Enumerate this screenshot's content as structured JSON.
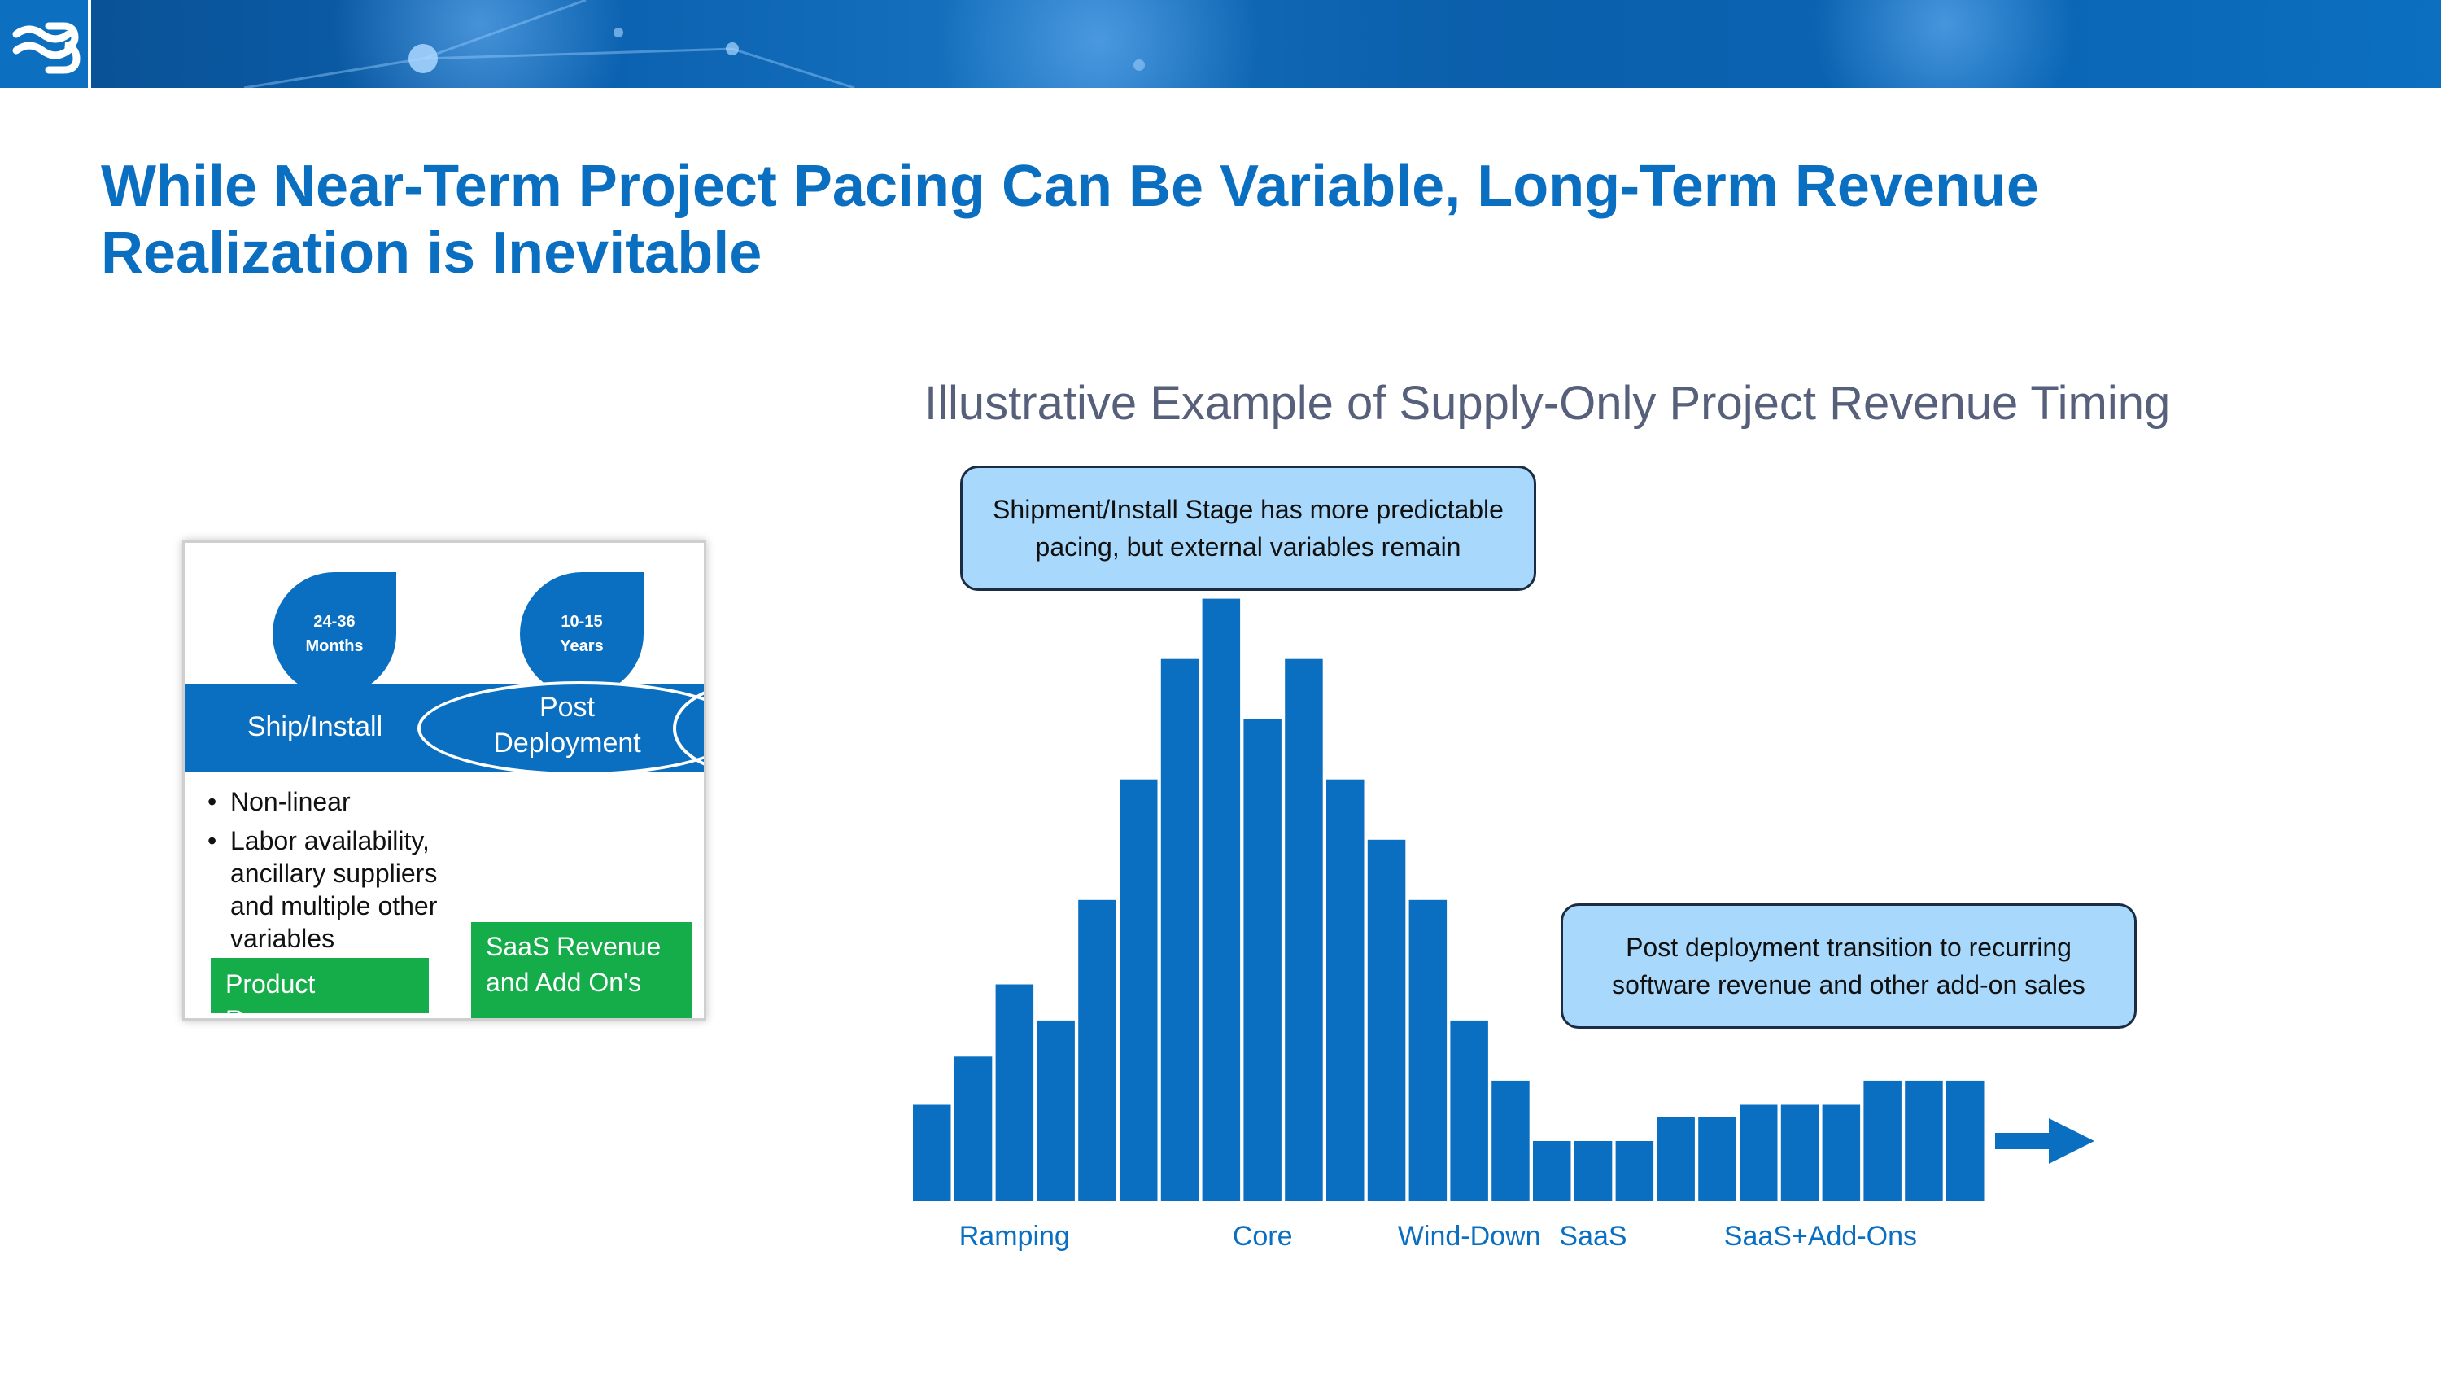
{
  "header": {
    "logo_icon": "company-b-logo-icon",
    "accent_color": "#0b6fc1"
  },
  "title": "While Near-Term Project Pacing Can Be Variable, Long-Term Revenue Realization is Inevitable",
  "inset": {
    "stages": [
      {
        "duration_line1": "24-36",
        "duration_line2": "Months",
        "label": "Ship/Install"
      },
      {
        "duration_line1": "10-15",
        "duration_line2": "Years",
        "label_line1": "Post",
        "label_line2": "Deployment"
      }
    ],
    "bullets": [
      "Non-linear",
      "Labor availability, ancillary suppliers and multiple other variables"
    ],
    "product_revenue": "Product Revenue",
    "saas_line1": "SaaS Revenue",
    "saas_line2": "and Add On's",
    "green_color": "#15ad4a"
  },
  "chart_data": {
    "type": "bar",
    "title": "Illustrative Example of Supply-Only Project Revenue Timing",
    "values": [
      8,
      12,
      18,
      15,
      25,
      35,
      45,
      50,
      40,
      45,
      35,
      30,
      25,
      15,
      10,
      5,
      5,
      5,
      7,
      7,
      8,
      8,
      8,
      10,
      10,
      10
    ],
    "ylim": [
      0,
      52
    ],
    "bar_color": "#0b6fc1",
    "category_labels": [
      {
        "text": "Ramping",
        "bar_index": 2
      },
      {
        "text": "Core",
        "bar_index": 8
      },
      {
        "text": "Wind-Down",
        "bar_index": 13
      },
      {
        "text": "SaaS",
        "bar_index": 16
      },
      {
        "text": "SaaS+Add-Ons",
        "bar_index": 21.5
      }
    ],
    "annotations": [
      {
        "line1": "Shipment/Install Stage has more predictable",
        "line2": "pacing, but external variables remain"
      },
      {
        "line1": "Post deployment transition to recurring",
        "line2": "software revenue and other add-on sales"
      }
    ],
    "arrow_icon": "arrow-right-icon"
  }
}
